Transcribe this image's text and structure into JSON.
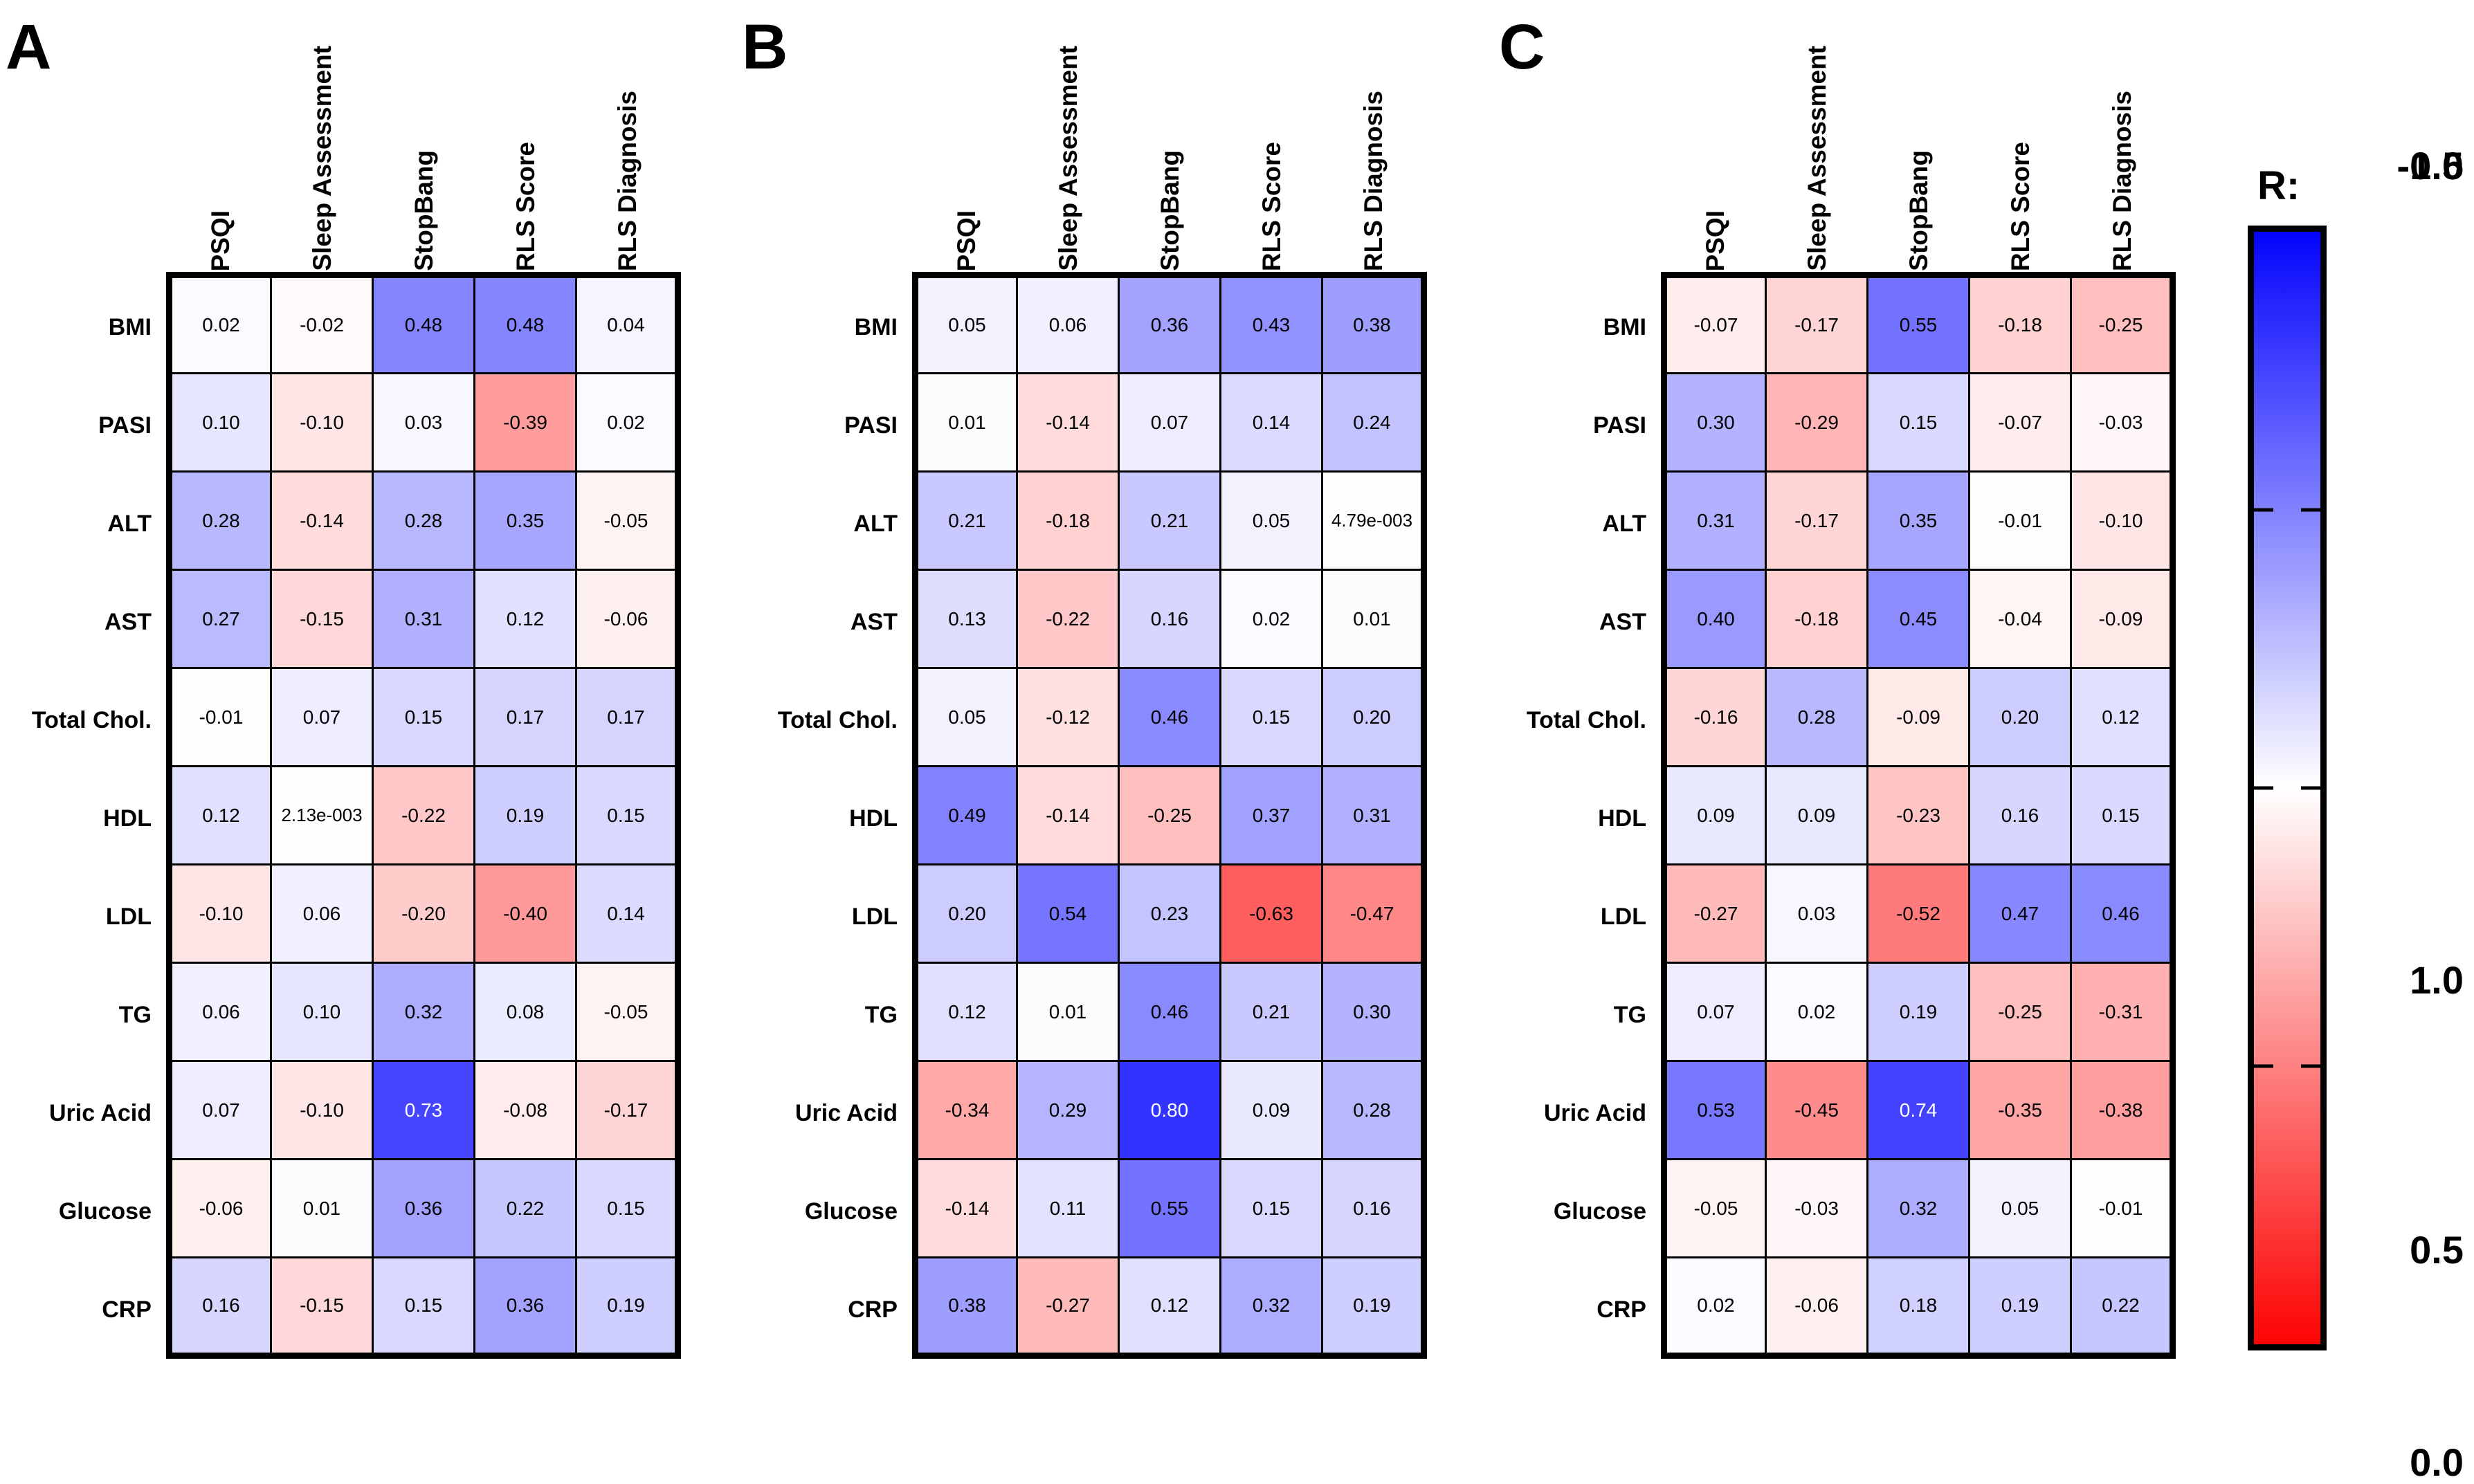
{
  "chart_data": {
    "type": "heatmap",
    "x_labels": [
      "PSQI",
      "Sleep Assessment",
      "StopBang",
      "RLS Score",
      "RLS Diagnosis"
    ],
    "y_labels": [
      "BMI",
      "PASI",
      "ALT",
      "AST",
      "Total Chol.",
      "HDL",
      "LDL",
      "TG",
      "Uric Acid",
      "Glucose",
      "CRP"
    ],
    "value_range": [
      -1.0,
      1.0
    ],
    "grid": true,
    "colorscale": {
      "max_color": "#0000ff",
      "mid_color": "#ffffff",
      "min_color": "#ff0000",
      "grid_line_color": "#000000",
      "white_text_threshold": 0.7
    },
    "legend": {
      "title": "R:",
      "position": "right",
      "tick_labels": [
        "1.0",
        "0.5",
        "0.0",
        "-0.5",
        "-1.0"
      ]
    },
    "panels": [
      {
        "label": "A",
        "cells": [
          [
            "0.02",
            "-0.02",
            "0.48",
            "0.48",
            "0.04"
          ],
          [
            "0.10",
            "-0.10",
            "0.03",
            "-0.39",
            "0.02"
          ],
          [
            "0.28",
            "-0.14",
            "0.28",
            "0.35",
            "-0.05"
          ],
          [
            "0.27",
            "-0.15",
            "0.31",
            "0.12",
            "-0.06"
          ],
          [
            "-0.01",
            "0.07",
            "0.15",
            "0.17",
            "0.17"
          ],
          [
            "0.12",
            "2.13e-003",
            "-0.22",
            "0.19",
            "0.15"
          ],
          [
            "-0.10",
            "0.06",
            "-0.20",
            "-0.40",
            "0.14"
          ],
          [
            "0.06",
            "0.10",
            "0.32",
            "0.08",
            "-0.05"
          ],
          [
            "0.07",
            "-0.10",
            "0.73",
            "-0.08",
            "-0.17"
          ],
          [
            "-0.06",
            "0.01",
            "0.36",
            "0.22",
            "0.15"
          ],
          [
            "0.16",
            "-0.15",
            "0.15",
            "0.36",
            "0.19"
          ]
        ]
      },
      {
        "label": "B",
        "cells": [
          [
            "0.05",
            "0.06",
            "0.36",
            "0.43",
            "0.38"
          ],
          [
            "0.01",
            "-0.14",
            "0.07",
            "0.14",
            "0.24"
          ],
          [
            "0.21",
            "-0.18",
            "0.21",
            "0.05",
            "4.79e-003"
          ],
          [
            "0.13",
            "-0.22",
            "0.16",
            "0.02",
            "0.01"
          ],
          [
            "0.05",
            "-0.12",
            "0.46",
            "0.15",
            "0.20"
          ],
          [
            "0.49",
            "-0.14",
            "-0.25",
            "0.37",
            "0.31"
          ],
          [
            "0.20",
            "0.54",
            "0.23",
            "-0.63",
            "-0.47"
          ],
          [
            "0.12",
            "0.01",
            "0.46",
            "0.21",
            "0.30"
          ],
          [
            "-0.34",
            "0.29",
            "0.80",
            "0.09",
            "0.28"
          ],
          [
            "-0.14",
            "0.11",
            "0.55",
            "0.15",
            "0.16"
          ],
          [
            "0.38",
            "-0.27",
            "0.12",
            "0.32",
            "0.19"
          ]
        ]
      },
      {
        "label": "C",
        "cells": [
          [
            "-0.07",
            "-0.17",
            "0.55",
            "-0.18",
            "-0.25"
          ],
          [
            "0.30",
            "-0.29",
            "0.15",
            "-0.07",
            "-0.03"
          ],
          [
            "0.31",
            "-0.17",
            "0.35",
            "-0.01",
            "-0.10"
          ],
          [
            "0.40",
            "-0.18",
            "0.45",
            "-0.04",
            "-0.09"
          ],
          [
            "-0.16",
            "0.28",
            "-0.09",
            "0.20",
            "0.12"
          ],
          [
            "0.09",
            "0.09",
            "-0.23",
            "0.16",
            "0.15"
          ],
          [
            "-0.27",
            "0.03",
            "-0.52",
            "0.47",
            "0.46"
          ],
          [
            "0.07",
            "0.02",
            "0.19",
            "-0.25",
            "-0.31"
          ],
          [
            "0.53",
            "-0.45",
            "0.74",
            "-0.35",
            "-0.38"
          ],
          [
            "-0.05",
            "-0.03",
            "0.32",
            "0.05",
            "-0.01"
          ],
          [
            "0.02",
            "-0.06",
            "0.18",
            "0.19",
            "0.22"
          ]
        ]
      }
    ]
  }
}
